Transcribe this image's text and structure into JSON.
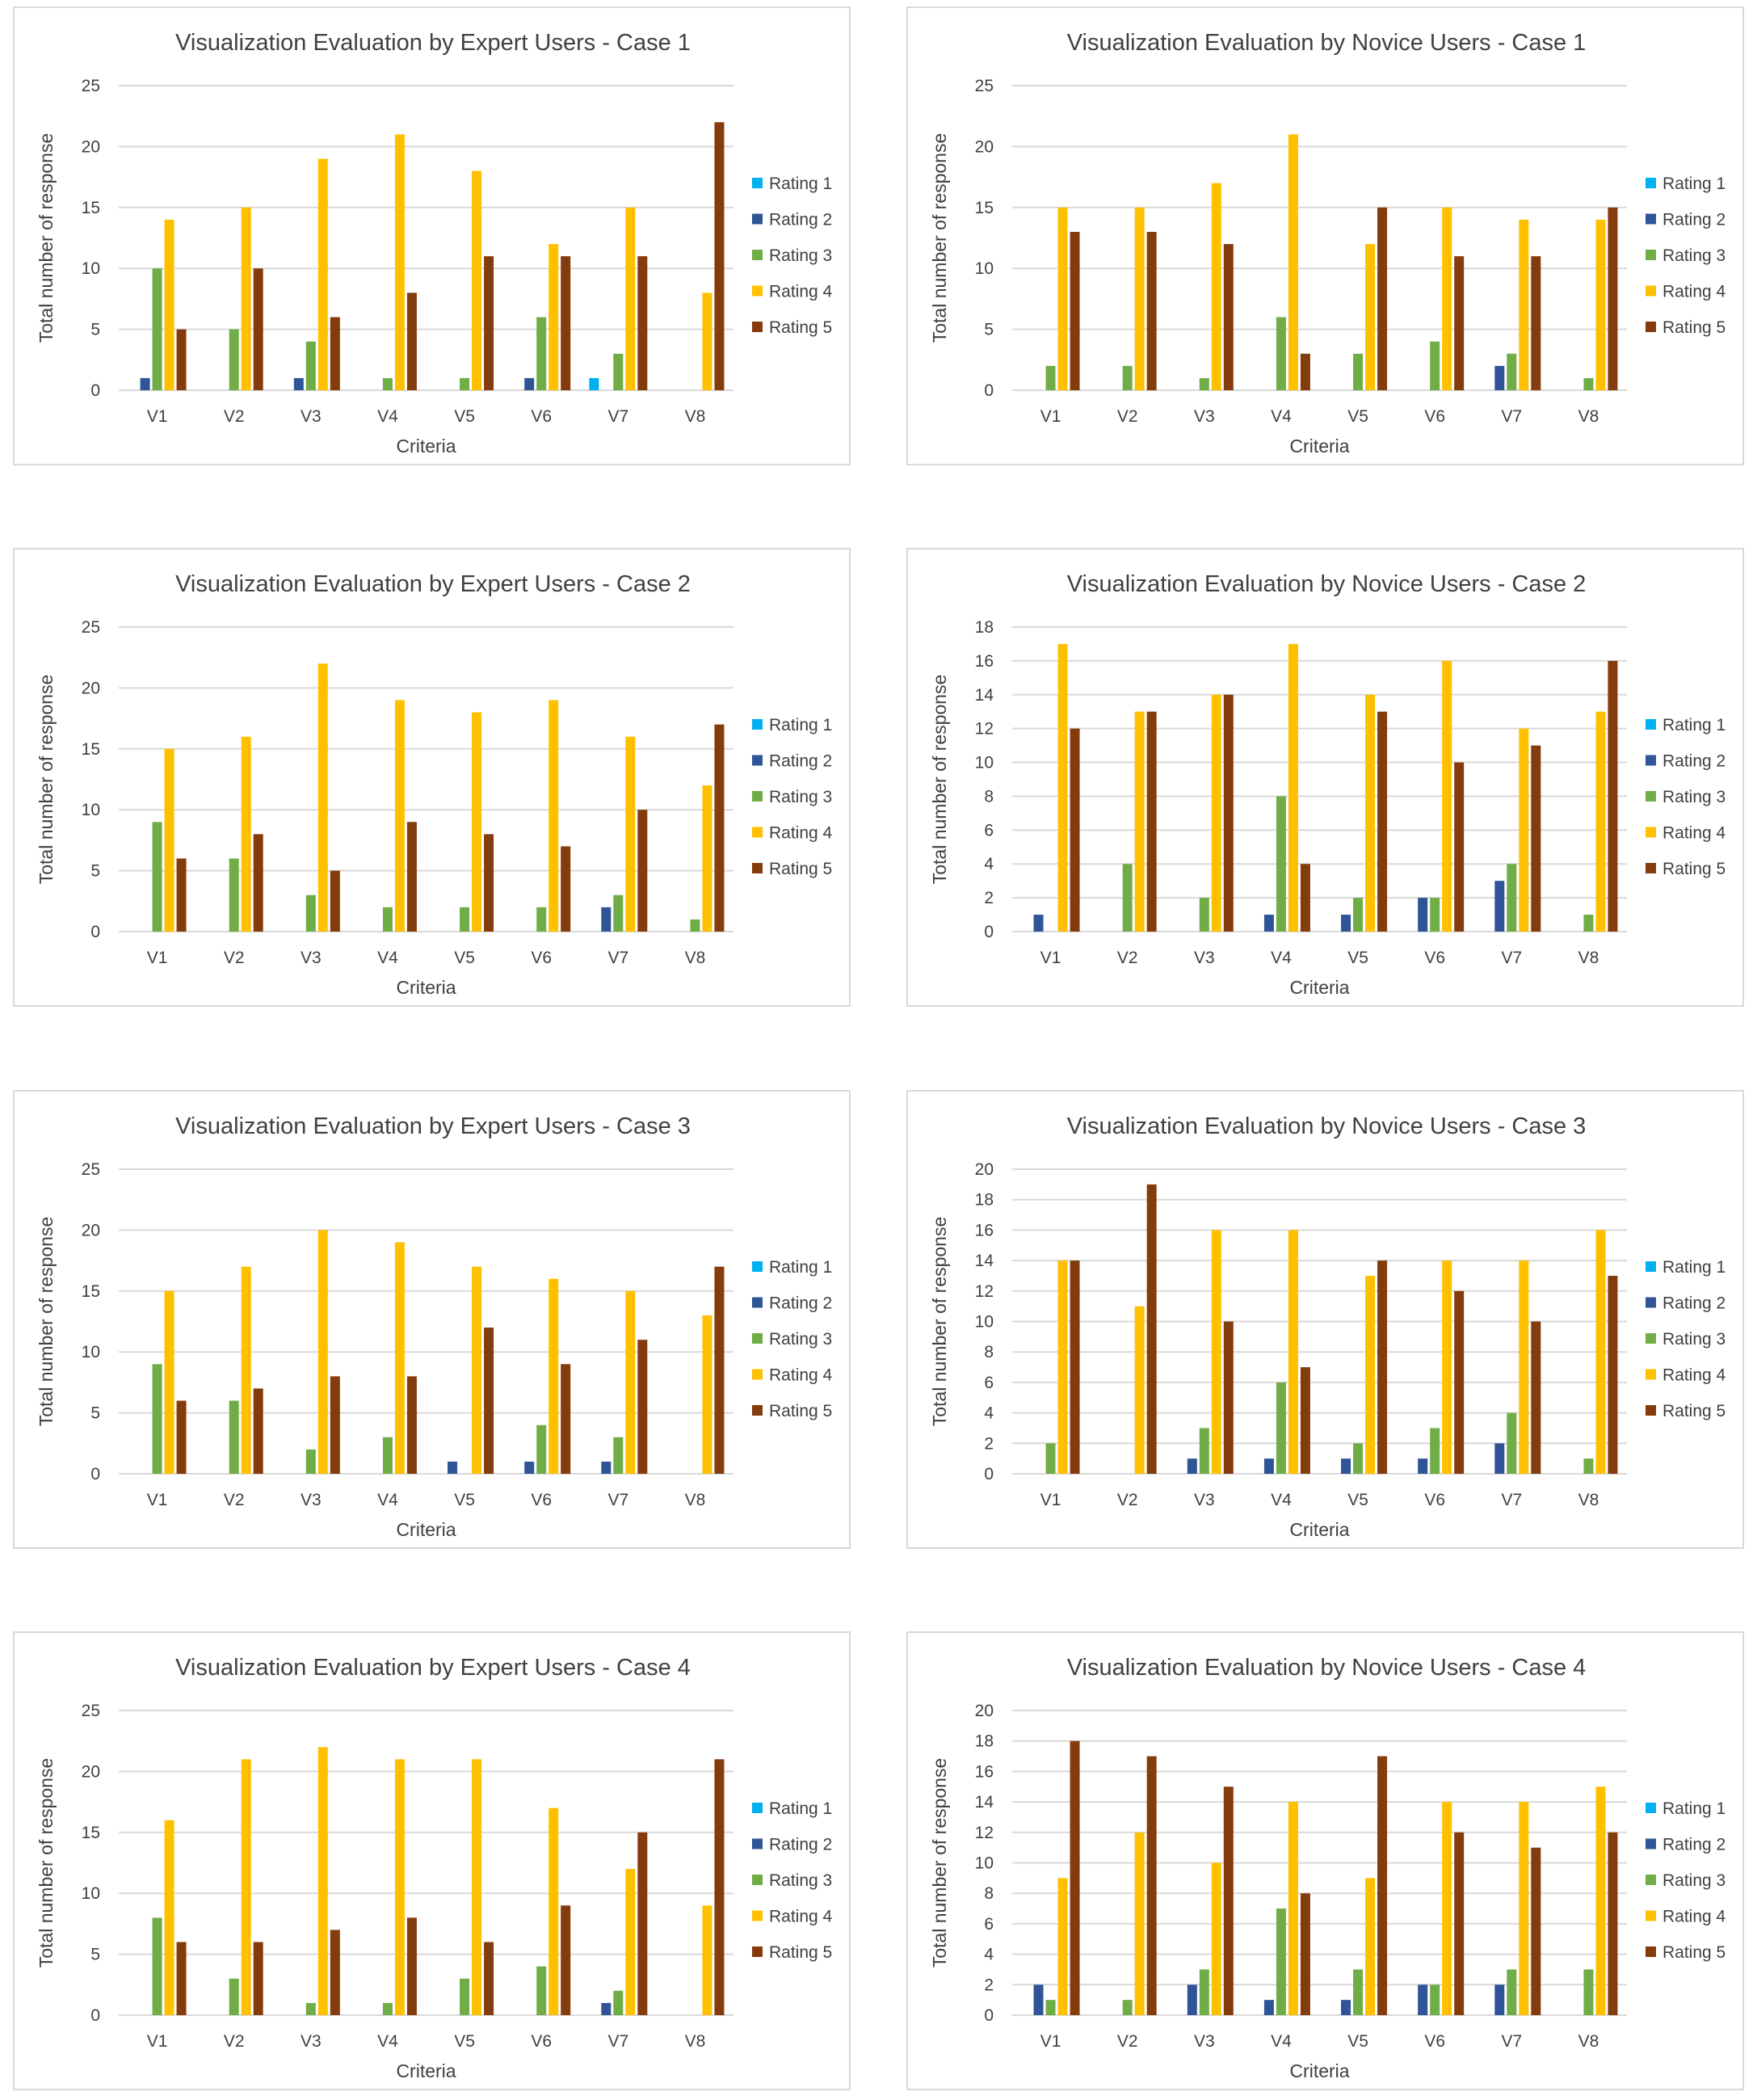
{
  "chart_data": [
    {
      "type": "bar",
      "title": "Visualization Evaluation by Expert Users - Case 1",
      "xlabel": "Criteria",
      "ylabel": "Total number of response",
      "ylim": [
        0,
        25
      ],
      "ytick_step": 5,
      "grid": true,
      "legend": "right",
      "categories": [
        "V1",
        "V2",
        "V3",
        "V4",
        "V5",
        "V6",
        "V7",
        "V8"
      ],
      "series": [
        {
          "name": "Rating 1",
          "color": "#00B0F0",
          "values": [
            0,
            0,
            0,
            0,
            0,
            0,
            1,
            0
          ]
        },
        {
          "name": "Rating 2",
          "color": "#2F5597",
          "values": [
            1,
            0,
            1,
            0,
            0,
            1,
            0,
            0
          ]
        },
        {
          "name": "Rating 3",
          "color": "#70AD47",
          "values": [
            10,
            5,
            4,
            1,
            1,
            6,
            3,
            0
          ]
        },
        {
          "name": "Rating 4",
          "color": "#FFC000",
          "values": [
            14,
            15,
            19,
            21,
            18,
            12,
            15,
            8
          ]
        },
        {
          "name": "Rating 5",
          "color": "#843C0C",
          "values": [
            5,
            10,
            6,
            8,
            11,
            11,
            11,
            22
          ]
        }
      ]
    },
    {
      "type": "bar",
      "title": "Visualization Evaluation by Novice Users - Case 1",
      "xlabel": "Criteria",
      "ylabel": "Total number of response",
      "ylim": [
        0,
        25
      ],
      "ytick_step": 5,
      "grid": true,
      "legend": "right",
      "categories": [
        "V1",
        "V2",
        "V3",
        "V4",
        "V5",
        "V6",
        "V7",
        "V8"
      ],
      "series": [
        {
          "name": "Rating 1",
          "color": "#00B0F0",
          "values": [
            0,
            0,
            0,
            0,
            0,
            0,
            0,
            0
          ]
        },
        {
          "name": "Rating 2",
          "color": "#2F5597",
          "values": [
            0,
            0,
            0,
            0,
            0,
            0,
            2,
            0
          ]
        },
        {
          "name": "Rating 3",
          "color": "#70AD47",
          "values": [
            2,
            2,
            1,
            6,
            3,
            4,
            3,
            1
          ]
        },
        {
          "name": "Rating 4",
          "color": "#FFC000",
          "values": [
            15,
            15,
            17,
            21,
            12,
            15,
            14,
            14
          ]
        },
        {
          "name": "Rating 5",
          "color": "#843C0C",
          "values": [
            13,
            13,
            12,
            3,
            15,
            11,
            11,
            15
          ]
        }
      ]
    },
    {
      "type": "bar",
      "title": "Visualization Evaluation by Expert Users - Case 2",
      "xlabel": "Criteria",
      "ylabel": "Total number of response",
      "ylim": [
        0,
        25
      ],
      "ytick_step": 5,
      "grid": true,
      "legend": "right",
      "categories": [
        "V1",
        "V2",
        "V3",
        "V4",
        "V5",
        "V6",
        "V7",
        "V8"
      ],
      "series": [
        {
          "name": "Rating 1",
          "color": "#00B0F0",
          "values": [
            0,
            0,
            0,
            0,
            0,
            0,
            0,
            0
          ]
        },
        {
          "name": "Rating 2",
          "color": "#2F5597",
          "values": [
            0,
            0,
            0,
            0,
            0,
            0,
            2,
            0
          ]
        },
        {
          "name": "Rating 3",
          "color": "#70AD47",
          "values": [
            9,
            6,
            3,
            2,
            2,
            2,
            3,
            1
          ]
        },
        {
          "name": "Rating 4",
          "color": "#FFC000",
          "values": [
            15,
            16,
            22,
            19,
            18,
            19,
            16,
            12
          ]
        },
        {
          "name": "Rating 5",
          "color": "#843C0C",
          "values": [
            6,
            8,
            5,
            9,
            8,
            7,
            10,
            17
          ]
        }
      ]
    },
    {
      "type": "bar",
      "title": "Visualization Evaluation by Novice Users - Case 2",
      "xlabel": "Criteria",
      "ylabel": "Total number of response",
      "ylim": [
        0,
        18
      ],
      "ytick_step": 2,
      "grid": true,
      "legend": "right",
      "categories": [
        "V1",
        "V2",
        "V3",
        "V4",
        "V5",
        "V6",
        "V7",
        "V8"
      ],
      "series": [
        {
          "name": "Rating 1",
          "color": "#00B0F0",
          "values": [
            0,
            0,
            0,
            0,
            0,
            0,
            0,
            0
          ]
        },
        {
          "name": "Rating 2",
          "color": "#2F5597",
          "values": [
            1,
            0,
            0,
            1,
            1,
            2,
            3,
            0
          ]
        },
        {
          "name": "Rating 3",
          "color": "#70AD47",
          "values": [
            0,
            4,
            2,
            8,
            2,
            2,
            4,
            1
          ]
        },
        {
          "name": "Rating 4",
          "color": "#FFC000",
          "values": [
            17,
            13,
            14,
            17,
            14,
            16,
            12,
            13
          ]
        },
        {
          "name": "Rating 5",
          "color": "#843C0C",
          "values": [
            12,
            13,
            14,
            4,
            13,
            10,
            11,
            16
          ]
        }
      ]
    },
    {
      "type": "bar",
      "title": "Visualization Evaluation by Expert Users - Case 3",
      "xlabel": "Criteria",
      "ylabel": "Total number of response",
      "ylim": [
        0,
        25
      ],
      "ytick_step": 5,
      "grid": true,
      "legend": "right",
      "categories": [
        "V1",
        "V2",
        "V3",
        "V4",
        "V5",
        "V6",
        "V7",
        "V8"
      ],
      "series": [
        {
          "name": "Rating 1",
          "color": "#00B0F0",
          "values": [
            0,
            0,
            0,
            0,
            0,
            0,
            0,
            0
          ]
        },
        {
          "name": "Rating 2",
          "color": "#2F5597",
          "values": [
            0,
            0,
            0,
            0,
            1,
            1,
            1,
            0
          ]
        },
        {
          "name": "Rating 3",
          "color": "#70AD47",
          "values": [
            9,
            6,
            2,
            3,
            0,
            4,
            3,
            0
          ]
        },
        {
          "name": "Rating 4",
          "color": "#FFC000",
          "values": [
            15,
            17,
            20,
            19,
            17,
            16,
            15,
            13
          ]
        },
        {
          "name": "Rating 5",
          "color": "#843C0C",
          "values": [
            6,
            7,
            8,
            8,
            12,
            9,
            11,
            17
          ]
        }
      ]
    },
    {
      "type": "bar",
      "title": "Visualization Evaluation by Novice Users - Case 3",
      "xlabel": "Criteria",
      "ylabel": "Total number of response",
      "ylim": [
        0,
        20
      ],
      "ytick_step": 2,
      "grid": true,
      "legend": "right",
      "categories": [
        "V1",
        "V2",
        "V3",
        "V4",
        "V5",
        "V6",
        "V7",
        "V8"
      ],
      "series": [
        {
          "name": "Rating 1",
          "color": "#00B0F0",
          "values": [
            0,
            0,
            0,
            0,
            0,
            0,
            0,
            0
          ]
        },
        {
          "name": "Rating 2",
          "color": "#2F5597",
          "values": [
            0,
            0,
            1,
            1,
            1,
            1,
            2,
            0
          ]
        },
        {
          "name": "Rating 3",
          "color": "#70AD47",
          "values": [
            2,
            0,
            3,
            6,
            2,
            3,
            4,
            1
          ]
        },
        {
          "name": "Rating 4",
          "color": "#FFC000",
          "values": [
            14,
            11,
            16,
            16,
            13,
            14,
            14,
            16
          ]
        },
        {
          "name": "Rating 5",
          "color": "#843C0C",
          "values": [
            14,
            19,
            10,
            7,
            14,
            12,
            10,
            13
          ]
        }
      ]
    },
    {
      "type": "bar",
      "title": "Visualization Evaluation by Expert Users - Case 4",
      "xlabel": "Criteria",
      "ylabel": "Total number of response",
      "ylim": [
        0,
        25
      ],
      "ytick_step": 5,
      "grid": true,
      "legend": "right",
      "categories": [
        "V1",
        "V2",
        "V3",
        "V4",
        "V5",
        "V6",
        "V7",
        "V8"
      ],
      "series": [
        {
          "name": "Rating 1",
          "color": "#00B0F0",
          "values": [
            0,
            0,
            0,
            0,
            0,
            0,
            0,
            0
          ]
        },
        {
          "name": "Rating 2",
          "color": "#2F5597",
          "values": [
            0,
            0,
            0,
            0,
            0,
            0,
            1,
            0
          ]
        },
        {
          "name": "Rating 3",
          "color": "#70AD47",
          "values": [
            8,
            3,
            1,
            1,
            3,
            4,
            2,
            0
          ]
        },
        {
          "name": "Rating 4",
          "color": "#FFC000",
          "values": [
            16,
            21,
            22,
            21,
            21,
            17,
            12,
            9
          ]
        },
        {
          "name": "Rating 5",
          "color": "#843C0C",
          "values": [
            6,
            6,
            7,
            8,
            6,
            9,
            15,
            21
          ]
        }
      ]
    },
    {
      "type": "bar",
      "title": "Visualization Evaluation by Novice Users - Case 4",
      "xlabel": "Criteria",
      "ylabel": "Total number of response",
      "ylim": [
        0,
        20
      ],
      "ytick_step": 2,
      "grid": true,
      "legend": "right",
      "categories": [
        "V1",
        "V2",
        "V3",
        "V4",
        "V5",
        "V6",
        "V7",
        "V8"
      ],
      "series": [
        {
          "name": "Rating 1",
          "color": "#00B0F0",
          "values": [
            0,
            0,
            0,
            0,
            0,
            0,
            0,
            0
          ]
        },
        {
          "name": "Rating 2",
          "color": "#2F5597",
          "values": [
            2,
            0,
            2,
            1,
            1,
            2,
            2,
            0
          ]
        },
        {
          "name": "Rating 3",
          "color": "#70AD47",
          "values": [
            1,
            1,
            3,
            7,
            3,
            2,
            3,
            3
          ]
        },
        {
          "name": "Rating 4",
          "color": "#FFC000",
          "values": [
            9,
            12,
            10,
            14,
            9,
            14,
            14,
            15
          ]
        },
        {
          "name": "Rating 5",
          "color": "#843C0C",
          "values": [
            18,
            17,
            15,
            8,
            17,
            12,
            11,
            12
          ]
        }
      ]
    }
  ]
}
